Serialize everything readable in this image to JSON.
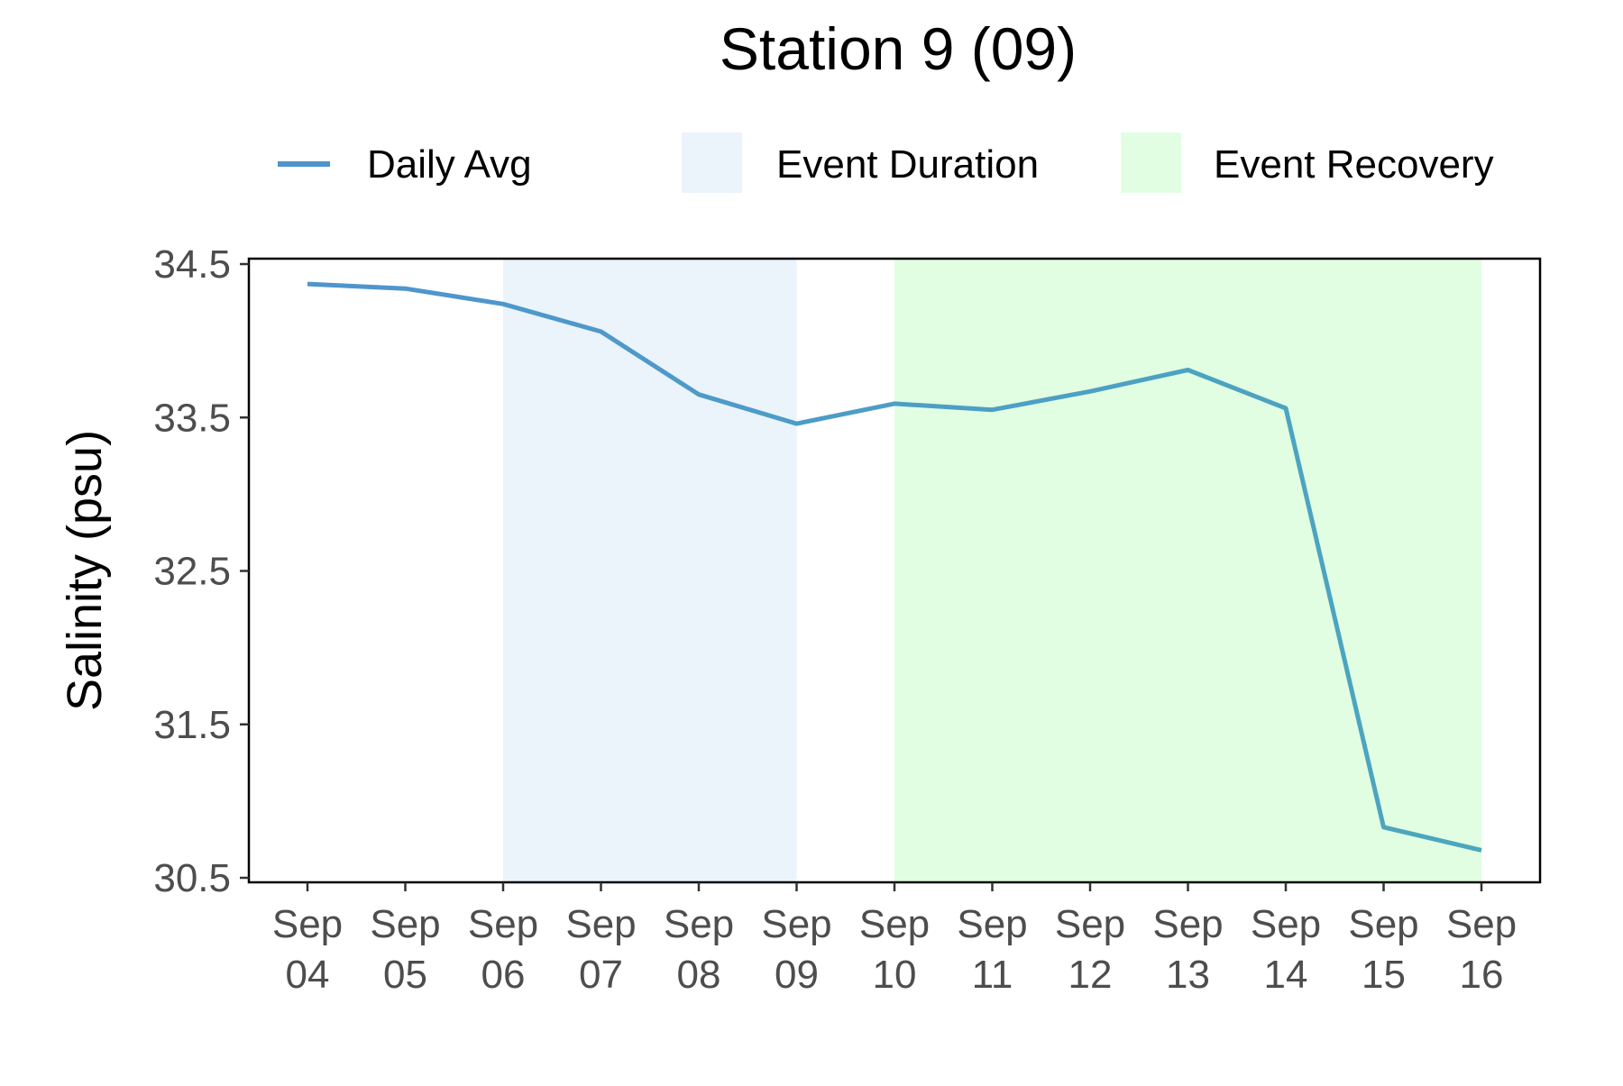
{
  "chart_data": {
    "type": "line",
    "title": "Station 9 (09)",
    "xlabel": "",
    "ylabel": "Salinity (psu)",
    "ylim": [
      30.5,
      34.5
    ],
    "yticks": [
      30.5,
      31.5,
      32.5,
      33.5,
      34.5
    ],
    "ytick_labels": [
      "30.5",
      "31.5",
      "32.5",
      "33.5",
      "34.5"
    ],
    "x": [
      "Sep 04",
      "Sep 05",
      "Sep 06",
      "Sep 07",
      "Sep 08",
      "Sep 09",
      "Sep 10",
      "Sep 11",
      "Sep 12",
      "Sep 13",
      "Sep 14",
      "Sep 15",
      "Sep 16"
    ],
    "xtick_labels": [
      [
        "Sep",
        "04"
      ],
      [
        "Sep",
        "05"
      ],
      [
        "Sep",
        "06"
      ],
      [
        "Sep",
        "07"
      ],
      [
        "Sep",
        "08"
      ],
      [
        "Sep",
        "09"
      ],
      [
        "Sep",
        "10"
      ],
      [
        "Sep",
        "11"
      ],
      [
        "Sep",
        "12"
      ],
      [
        "Sep",
        "13"
      ],
      [
        "Sep",
        "14"
      ],
      [
        "Sep",
        "15"
      ],
      [
        "Sep",
        "16"
      ]
    ],
    "series": [
      {
        "name": "Daily Avg",
        "values": [
          34.37,
          34.34,
          34.24,
          34.06,
          33.65,
          33.46,
          33.59,
          33.55,
          33.67,
          33.81,
          33.56,
          30.83,
          30.68
        ]
      }
    ],
    "shaded_regions": [
      {
        "name": "Event Duration",
        "x_start": "Sep 06",
        "x_end": "Sep 09",
        "color": "#EBF3FB"
      },
      {
        "name": "Event Recovery",
        "x_start": "Sep 10",
        "x_end": "Sep 16",
        "color": "#E2FEE2"
      }
    ],
    "legend": {
      "placement": "top",
      "entries": [
        {
          "label": "Daily Avg",
          "kind": "line",
          "color": "#4E94CE"
        },
        {
          "label": "Event Duration",
          "kind": "fill",
          "color": "#EBF3FB"
        },
        {
          "label": "Event Recovery",
          "kind": "fill",
          "color": "#E2FEE2"
        }
      ]
    },
    "line_colors": {
      "start": "#4E94CE",
      "end": "#4CA7BD"
    },
    "grid": false
  }
}
